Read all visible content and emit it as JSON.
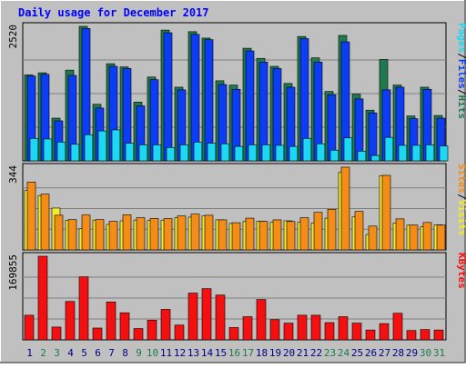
{
  "chart_data": {
    "type": "bar",
    "title": "Daily usage for December 2017",
    "categories": [
      "1",
      "2",
      "3",
      "4",
      "5",
      "6",
      "7",
      "8",
      "9",
      "10",
      "11",
      "12",
      "13",
      "14",
      "15",
      "16",
      "17",
      "18",
      "19",
      "20",
      "21",
      "22",
      "23",
      "24",
      "25",
      "26",
      "27",
      "28",
      "29",
      "30",
      "31"
    ],
    "weekend_days": [
      "2",
      "3",
      "9",
      "10",
      "16",
      "17",
      "23",
      "24",
      "30",
      "31"
    ],
    "panels": [
      {
        "id": "top",
        "max_label": "2520",
        "ylim": [
          0,
          2520
        ],
        "series": [
          {
            "name": "Hits",
            "color": "#1e7a4e",
            "values": [
              1610,
              1650,
              800,
              1700,
              2520,
              1060,
              1820,
              1760,
              1100,
              1570,
              2450,
              1380,
              2420,
              2300,
              1500,
              1420,
              2110,
              1920,
              1770,
              1450,
              2330,
              1930,
              1300,
              2350,
              1250,
              950,
              1900,
              1420,
              840,
              1380,
              850
            ]
          },
          {
            "name": "Files",
            "color": "#0c3cf4",
            "values": [
              1590,
              1620,
              750,
              1600,
              2480,
              990,
              1770,
              1730,
              1030,
              1520,
              2400,
              1330,
              2370,
              2270,
              1430,
              1340,
              2060,
              1850,
              1730,
              1380,
              2290,
              1850,
              1240,
              2230,
              1160,
              900,
              1330,
              1380,
              790,
              1340,
              800
            ]
          },
          {
            "name": "Pages",
            "color": "#1cd8f4",
            "values": [
              420,
              410,
              350,
              310,
              490,
              560,
              580,
              330,
              300,
              300,
              250,
              300,
              350,
              330,
              320,
              270,
              300,
              300,
              290,
              270,
              420,
              320,
              200,
              430,
              180,
              100,
              440,
              290,
              290,
              300,
              280
            ]
          }
        ],
        "legend": [
          "Pages",
          "Files",
          "Hits"
        ]
      },
      {
        "id": "middle",
        "max_label": "344",
        "ylim": [
          0,
          344
        ],
        "series": [
          {
            "name": "Visits",
            "color": "#f4ec28",
            "values": [
              247,
              226,
              174,
              123,
              89,
              124,
              106,
              121,
              124,
              122,
              124,
              134,
              136,
              141,
              125,
              110,
              118,
              119,
              115,
              121,
              115,
              112,
              132,
              322,
              137,
              64,
              309,
              112,
              103,
              96,
              104
            ]
          },
          {
            "name": "Sites",
            "color": "#f48c18",
            "values": [
              282,
              232,
              144,
              126,
              145,
              126,
              119,
              146,
              134,
              131,
              130,
              141,
              149,
              144,
              125,
              113,
              132,
              119,
              125,
              118,
              134,
              156,
              169,
              344,
              160,
              99,
              310,
              129,
              103,
              114,
              103
            ]
          }
        ],
        "legend": [
          "Sites",
          "Visits"
        ]
      },
      {
        "id": "bottom",
        "max_label": "169855",
        "ylim": [
          0,
          169855
        ],
        "series": [
          {
            "name": "KBytes",
            "color": "#f41010",
            "values": [
              50000,
              169855,
              26000,
              78000,
              128000,
              24000,
              77000,
              55000,
              23000,
              40000,
              62000,
              30000,
              95000,
              104000,
              91000,
              25000,
              47000,
              82000,
              41000,
              34000,
              50000,
              50000,
              35000,
              47000,
              34000,
              20000,
              33000,
              54000,
              19000,
              21000,
              20000
            ]
          }
        ],
        "legend": [
          "KBytes"
        ]
      }
    ],
    "colors": {
      "background": "#c0c0c0",
      "panel": "#c0c0c0",
      "title": "#0000ff",
      "weekday_label": "#000080",
      "weekend_label": "#1e7a4e",
      "legend_separator": "#000000"
    }
  }
}
